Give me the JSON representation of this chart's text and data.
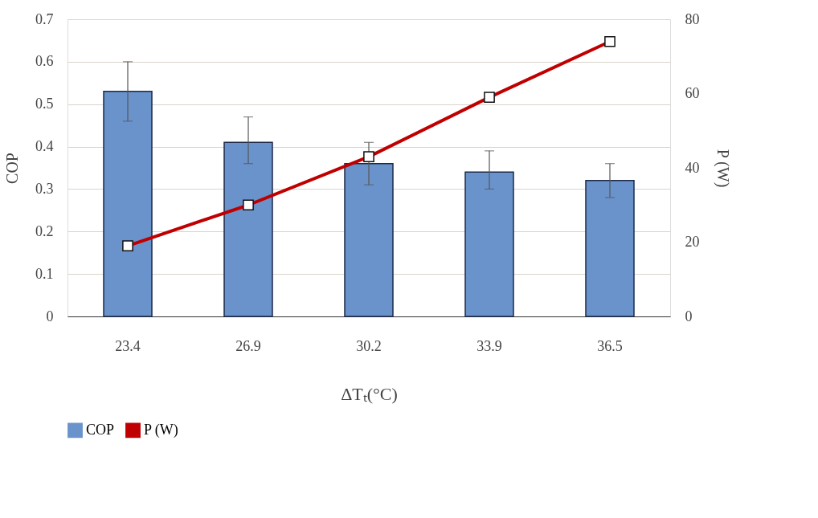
{
  "chart_data": {
    "type": "bar",
    "xlabel": "ΔTₜ(°C)",
    "ylabel": "COP",
    "y2label": "P (W)",
    "categories": [
      "23.4",
      "26.9",
      "30.2",
      "33.9",
      "36.5"
    ],
    "series": [
      {
        "name": "COP",
        "color": "#6a93cc",
        "values": [
          0.53,
          0.41,
          0.36,
          0.34,
          0.32
        ],
        "errors": [
          [
            0.46,
            0.6
          ],
          [
            0.36,
            0.47
          ],
          [
            0.31,
            0.41
          ],
          [
            0.3,
            0.39
          ],
          [
            0.28,
            0.36
          ]
        ]
      },
      {
        "name": "P (W)",
        "type": "line",
        "axis": "y2",
        "color": "#c00000",
        "marker": "square",
        "values": [
          19,
          30,
          43,
          59,
          74
        ]
      }
    ],
    "ylim": [
      0,
      0.7
    ],
    "yticks": [
      0,
      0.1,
      0.2,
      0.3,
      0.4,
      0.5,
      0.6,
      0.7
    ],
    "y2lim": [
      0,
      80
    ],
    "y2ticks": [
      0,
      20,
      40,
      60,
      80
    ],
    "grid": "y",
    "legend": "bottom"
  }
}
